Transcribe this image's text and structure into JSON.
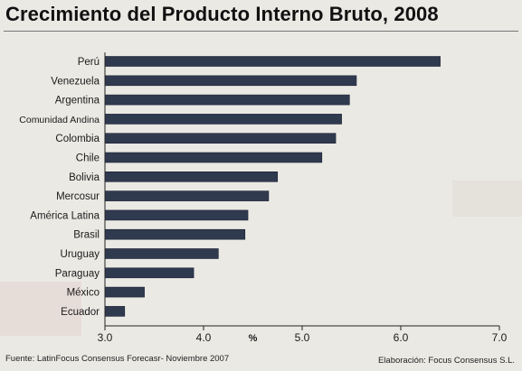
{
  "title": "Crecimiento del Producto Interno Bruto, 2008",
  "footer": {
    "source": "Fuente: LatinFocus Consensus Forecasr- Noviembre 2007",
    "credit": "Elaboración: Focus Consensus S.L."
  },
  "colors": {
    "bar": "#2f3a4f",
    "background": "#ebe9e4",
    "axis": "#222222"
  },
  "chart_data": {
    "type": "bar",
    "orientation": "horizontal",
    "categories": [
      "Perú",
      "Venezuela",
      "Argentina",
      "Comunidad Andina",
      "Colombia",
      "Chile",
      "Bolivia",
      "Mercosur",
      "América Latina",
      "Brasil",
      "Uruguay",
      "Paraguay",
      "México",
      "Ecuador"
    ],
    "values": [
      6.4,
      5.55,
      5.48,
      5.4,
      5.34,
      5.2,
      4.75,
      4.66,
      4.45,
      4.42,
      4.15,
      3.9,
      3.4,
      3.2
    ],
    "xlabel": "%",
    "xlim": [
      3.0,
      7.0
    ],
    "xticks": [
      "3.0",
      "4.0",
      "5.0",
      "6.0",
      "7.0"
    ],
    "grid": false,
    "legend": "none"
  }
}
